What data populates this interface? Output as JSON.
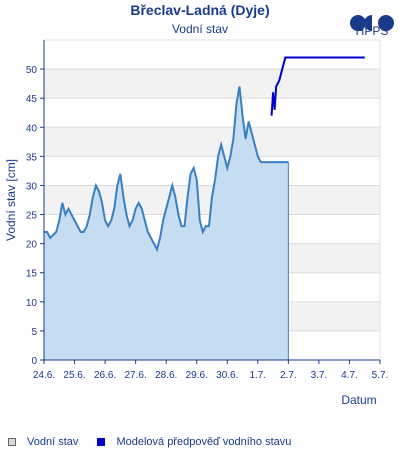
{
  "chart_data": {
    "type": "line",
    "title": "Břeclav-Ladná (Dyje)",
    "subtitle": "Vodní stav",
    "logo_text": "HPPS",
    "ylabel": "Vodní stav [cm]",
    "xlabel": "Datum",
    "ylim": [
      0,
      55
    ],
    "xlim": [
      0,
      11
    ],
    "yticks": [
      0,
      5,
      10,
      15,
      20,
      25,
      30,
      35,
      40,
      45,
      50
    ],
    "xticks": [
      "24.6.",
      "25.6.",
      "26.6.",
      "27.6.",
      "28.6.",
      "29.6.",
      "30.6.",
      "1.7.",
      "2.7.",
      "3.7.",
      "4.7.",
      "5.7."
    ],
    "grid": true,
    "legend_position": "bottom",
    "series": [
      {
        "name": "Vodní stav",
        "color": "#3a7fc4",
        "fill": "#c5dcf1",
        "x": [
          0.0,
          0.1,
          0.2,
          0.4,
          0.5,
          0.6,
          0.7,
          0.8,
          0.9,
          1.0,
          1.2,
          1.3,
          1.4,
          1.5,
          1.6,
          1.7,
          1.8,
          1.9,
          2.0,
          2.1,
          2.2,
          2.3,
          2.4,
          2.5,
          2.6,
          2.7,
          2.8,
          2.9,
          3.0,
          3.1,
          3.2,
          3.3,
          3.4,
          3.5,
          3.6,
          3.7,
          3.8,
          3.9,
          4.0,
          4.1,
          4.2,
          4.3,
          4.4,
          4.5,
          4.6,
          4.7,
          4.8,
          4.9,
          5.0,
          5.1,
          5.2,
          5.3,
          5.4,
          5.5,
          5.6,
          5.7,
          5.8,
          5.9,
          6.0,
          6.1,
          6.2,
          6.3,
          6.4,
          6.5,
          6.6,
          6.7,
          6.8,
          6.9,
          7.0,
          7.1,
          7.2,
          7.3,
          7.4,
          7.5,
          7.55,
          7.6,
          7.65,
          7.7,
          7.75,
          7.8,
          7.85,
          7.9,
          7.95,
          8.0
        ],
        "y": [
          22,
          22,
          21,
          22,
          24,
          27,
          25,
          26,
          25,
          24,
          22,
          22,
          23,
          25,
          28,
          30,
          29,
          27,
          24,
          23,
          24,
          26,
          30,
          32,
          28,
          25,
          23,
          24,
          26,
          27,
          26,
          24,
          22,
          21,
          20,
          19,
          21,
          24,
          26,
          28,
          30,
          28,
          25,
          23,
          23,
          28,
          32,
          33,
          31,
          24,
          22,
          23,
          23,
          28,
          31,
          35,
          37,
          35,
          33,
          35,
          38,
          44,
          47,
          42,
          38,
          41,
          39,
          37,
          35,
          34,
          34,
          34,
          34,
          34,
          34,
          34,
          34,
          34,
          34,
          34,
          34,
          34,
          34,
          34
        ]
      },
      {
        "name": "Modelová předpověď vodního stavu",
        "color": "#0000cc",
        "x": [
          7.45,
          7.5,
          7.55,
          7.6,
          7.7,
          7.8,
          7.9,
          8.0,
          8.5,
          9.0,
          9.5,
          10.0,
          10.5
        ],
        "y": [
          42,
          46,
          43,
          47,
          48,
          50,
          52,
          52,
          52,
          52,
          52,
          52,
          52
        ]
      }
    ]
  }
}
